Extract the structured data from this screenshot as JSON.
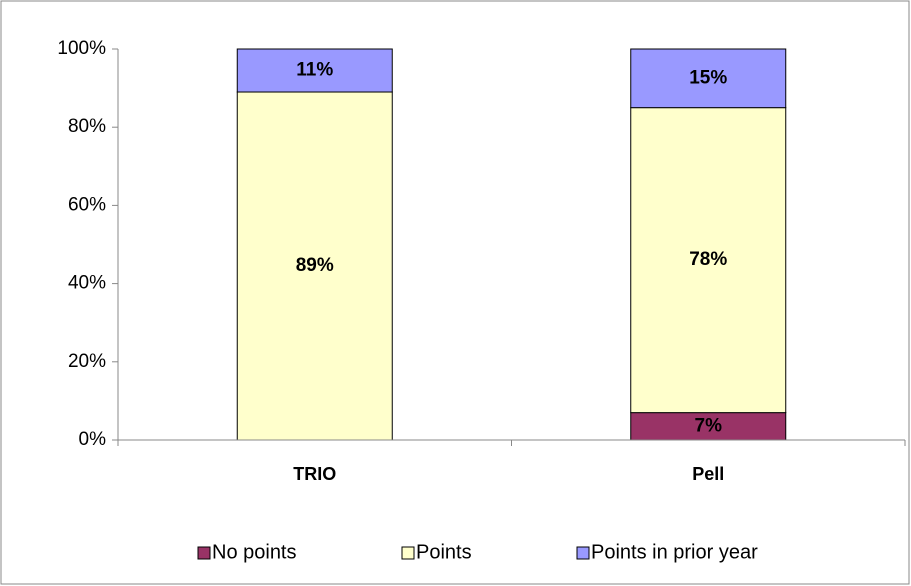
{
  "chart_data": {
    "type": "stacked_bar",
    "categories": [
      "TRIO",
      "Pell"
    ],
    "series": [
      {
        "name": "No points",
        "color": "#993366",
        "values": [
          0,
          7
        ],
        "value_labels": [
          null,
          "7%"
        ]
      },
      {
        "name": "Points",
        "color": "#ffffcc",
        "values": [
          89,
          78
        ],
        "value_labels": [
          "89%",
          "78%"
        ]
      },
      {
        "name": "Points in prior year",
        "color": "#9999ff",
        "values": [
          11,
          15
        ],
        "value_labels": [
          "11%",
          "15%"
        ]
      }
    ],
    "ylim": [
      0,
      100
    ],
    "yticks": [
      {
        "value": 0,
        "label": "0%"
      },
      {
        "value": 20,
        "label": "20%"
      },
      {
        "value": 40,
        "label": "40%"
      },
      {
        "value": 60,
        "label": "60%"
      },
      {
        "value": 80,
        "label": "80%"
      },
      {
        "value": 100,
        "label": "100%"
      }
    ],
    "legend": "bottom"
  }
}
